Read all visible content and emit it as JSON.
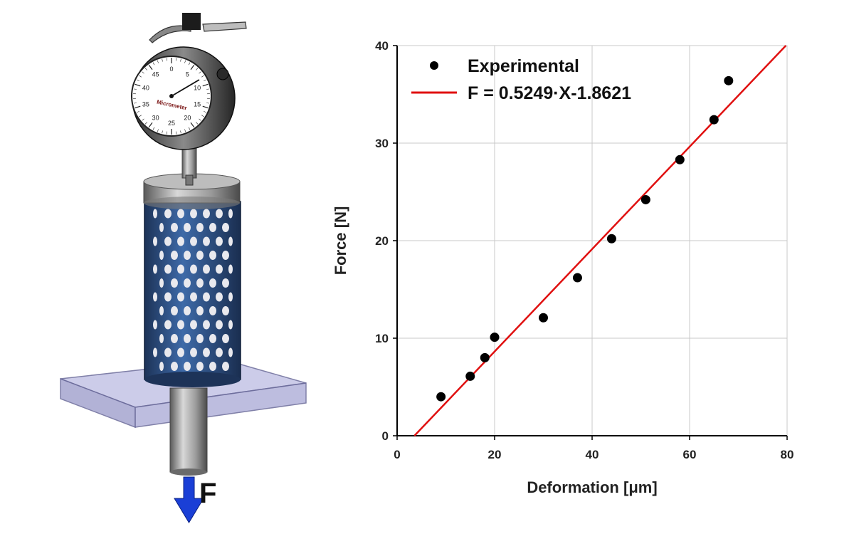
{
  "illustration": {
    "dial_brand": "Micrometer",
    "dial_numbers": [
      "0",
      "5",
      "10",
      "15",
      "20",
      "25",
      "30",
      "35",
      "40",
      "45"
    ],
    "force_label": "F",
    "colors": {
      "lattice": "#2b4a78",
      "arrow": "#1a3fd6",
      "plate": "#b8b8e0"
    }
  },
  "chart_data": {
    "type": "scatter",
    "xlabel": "Deformation [μm]",
    "ylabel": "Force [N]",
    "xlim": [
      0,
      80
    ],
    "ylim": [
      0,
      40
    ],
    "xticks": [
      "0",
      "20",
      "40",
      "60",
      "80"
    ],
    "yticks": [
      "0",
      "10",
      "20",
      "30",
      "40"
    ],
    "grid": true,
    "legend_position": "top-left",
    "series": [
      {
        "name": "Experimental",
        "kind": "points",
        "color": "#000000",
        "x": [
          9,
          15,
          18,
          20,
          30,
          37,
          44,
          51,
          58,
          65,
          68
        ],
        "y": [
          4.0,
          6.1,
          8.0,
          10.1,
          12.1,
          16.2,
          20.2,
          24.2,
          28.3,
          32.4,
          36.4
        ]
      },
      {
        "name": "F = 0.5249·X-1.8621",
        "kind": "fit-line",
        "color": "#e01010",
        "slope": 0.5249,
        "intercept": -1.8621
      }
    ]
  }
}
